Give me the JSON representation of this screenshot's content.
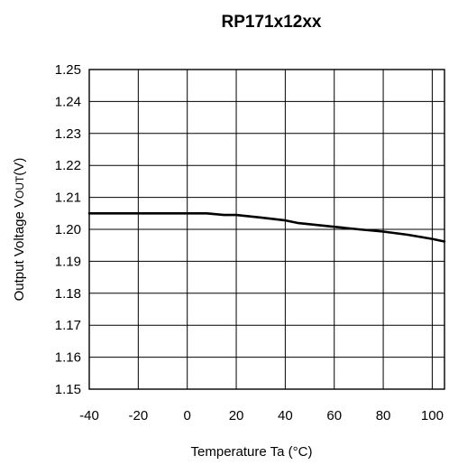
{
  "chart_data": {
    "type": "line",
    "title": "RP171x12xx",
    "xlabel": "Temperature Ta (°C)",
    "ylabel_main": "Output Voltage  V",
    "ylabel_sub": "OUT",
    "ylabel_unit": "(V)",
    "xlim": [
      -40,
      105
    ],
    "ylim": [
      1.15,
      1.25
    ],
    "x_ticks": [
      -40,
      -20,
      0,
      20,
      40,
      60,
      80,
      100
    ],
    "x_tick_labels": [
      "-40",
      "-20",
      "0",
      "20",
      "40",
      "60",
      "80",
      "100"
    ],
    "y_ticks": [
      1.25,
      1.24,
      1.23,
      1.22,
      1.21,
      1.2,
      1.19,
      1.18,
      1.17,
      1.16,
      1.15
    ],
    "y_tick_labels": [
      "1.25",
      "1.24",
      "1.23",
      "1.22",
      "1.21",
      "1.20",
      "1.19",
      "1.18",
      "1.17",
      "1.16",
      "1.15"
    ],
    "grid": true,
    "series": [
      {
        "x": [
          -40,
          -20,
          0,
          5,
          8,
          15,
          20,
          30,
          40,
          45,
          60,
          70,
          80,
          90,
          100,
          105
        ],
        "y": [
          1.205,
          1.205,
          1.205,
          1.205,
          1.205,
          1.2045,
          1.2045,
          1.2037,
          1.2028,
          1.202,
          1.2008,
          1.2,
          1.1993,
          1.1983,
          1.197,
          1.1962
        ]
      }
    ]
  }
}
